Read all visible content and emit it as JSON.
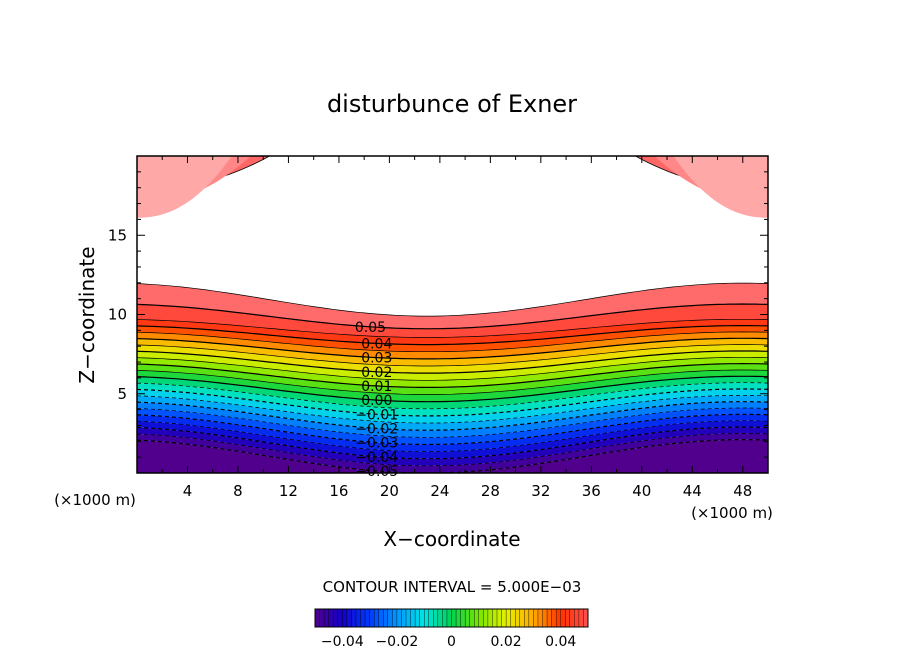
{
  "chart_data": {
    "type": "contour",
    "title": "disturbunce of Exner",
    "xlabel": "X−coordinate",
    "ylabel": "Z−coordinate",
    "x_unit_left": "(×1000 m)",
    "x_unit_right": "(×1000 m)",
    "xlim": [
      0,
      50
    ],
    "ylim": [
      0,
      20
    ],
    "x_ticks": [
      4,
      8,
      12,
      16,
      20,
      24,
      28,
      32,
      36,
      40,
      44,
      48
    ],
    "y_ticks": [
      5,
      10,
      15
    ],
    "contour_interval_text": "CONTOUR INTERVAL = 5.000E−03",
    "contour_labels": [
      "0.05",
      "0.04",
      "0.03",
      "0.02",
      "0.01",
      "0.00",
      "−0.01",
      "−0.02",
      "−0.03",
      "−0.04",
      "−0.05"
    ],
    "field_min": -0.05,
    "field_max": 0.06,
    "colorbar_ticks": [
      "−0.04",
      "−0.02",
      "0",
      "0.02",
      "0.04"
    ],
    "colorbar_range": [
      -0.05,
      0.05
    ]
  }
}
